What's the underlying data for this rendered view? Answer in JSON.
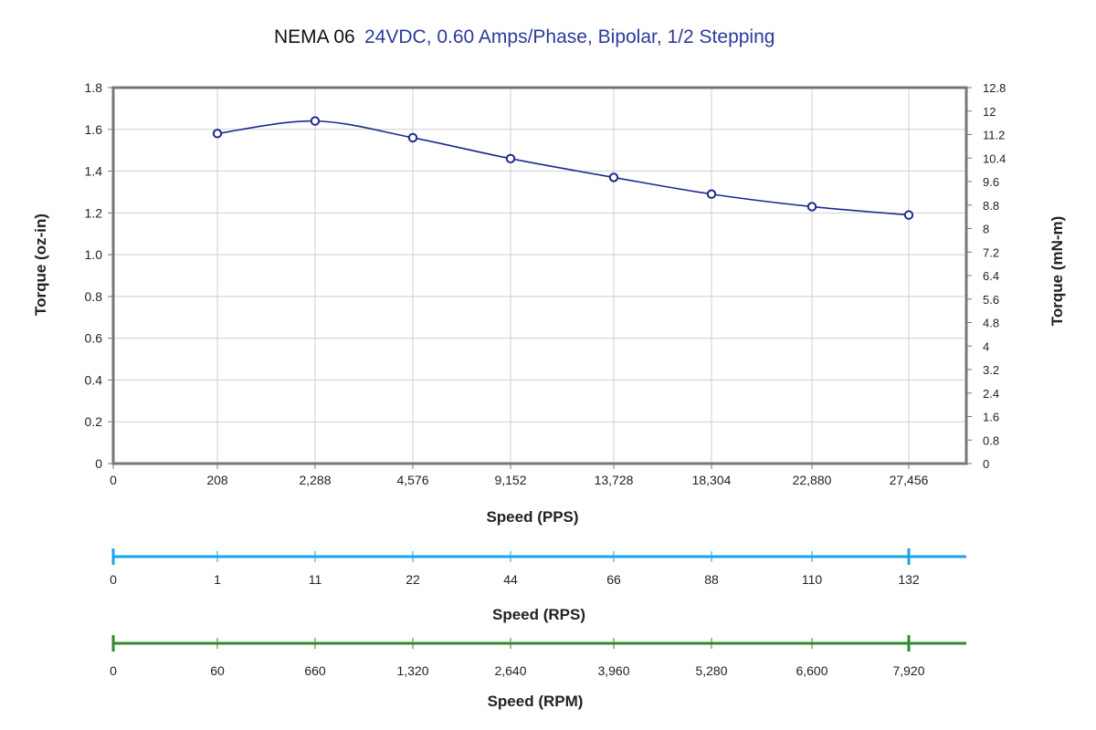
{
  "chart_data": {
    "type": "line",
    "title": "NEMA 06",
    "subtitle": "24VDC, 0.60 Amps/Phase, Bipolar, 1/2 Stepping",
    "ylabel": "Torque (oz-in)",
    "ylabel_right": "Torque (mN-m)",
    "xlabel": "Speed (PPS)",
    "ylim": [
      0,
      1.8
    ],
    "yticks": [
      "0",
      "0.2",
      "0.4",
      "0.6",
      "0.8",
      "1.0",
      "1.2",
      "1.4",
      "1.6",
      "1.8"
    ],
    "yticks_right": [
      "0",
      "0.8",
      "1.6",
      "2.4",
      "3.2",
      "4",
      "4.8",
      "5.6",
      "6.4",
      "7.2",
      "8",
      "8.8",
      "9.6",
      "10.4",
      "11.2",
      "12",
      "12.8"
    ],
    "xticks": [
      "0",
      "208",
      "2,288",
      "4,576",
      "9,152",
      "13,728",
      "18,304",
      "22,880",
      "27,456"
    ],
    "grid": true,
    "series": [
      {
        "x": [
          "208",
          "2,288",
          "4,576",
          "9,152",
          "13,728",
          "18,304",
          "22,880",
          "27,456"
        ],
        "values": [
          1.58,
          1.64,
          1.56,
          1.46,
          1.37,
          1.29,
          1.23,
          1.19
        ]
      }
    ],
    "secondary_axes": [
      {
        "label": "Speed (RPS)",
        "ticks": [
          "0",
          "1",
          "11",
          "22",
          "44",
          "66",
          "88",
          "110",
          "132"
        ],
        "color": "#1aa3e8"
      },
      {
        "label": "Speed (RPM)",
        "ticks": [
          "0",
          "60",
          "660",
          "1,320",
          "2,640",
          "3,960",
          "5,280",
          "6,600",
          "7,920"
        ],
        "color": "#2e8b2e"
      }
    ]
  },
  "colors": {
    "line": "#1c2a8c",
    "subtitle": "#2b3a9c",
    "frame": "#777777",
    "grid": "#cfcfcf"
  }
}
